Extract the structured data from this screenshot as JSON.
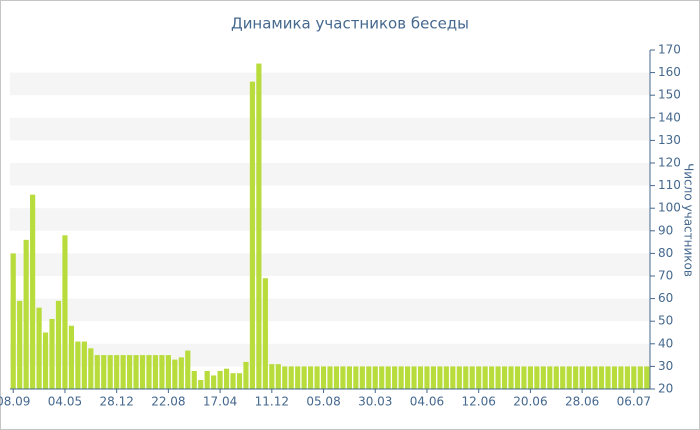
{
  "chart_data": {
    "type": "bar",
    "title": "Динамика участников беседы",
    "y_axis_label": "Число участников",
    "categories": [
      "08.09",
      null,
      null,
      null,
      null,
      null,
      null,
      null,
      "04.05",
      null,
      null,
      null,
      null,
      null,
      null,
      null,
      "28.12",
      null,
      null,
      null,
      null,
      null,
      null,
      null,
      "22.08",
      null,
      null,
      null,
      null,
      null,
      null,
      null,
      "17.04",
      null,
      null,
      null,
      null,
      null,
      null,
      null,
      "11.12",
      null,
      null,
      null,
      null,
      null,
      null,
      null,
      "05.08",
      null,
      null,
      null,
      null,
      null,
      null,
      null,
      "30.03",
      null,
      null,
      null,
      null,
      null,
      null,
      null,
      "04.06",
      null,
      null,
      null,
      null,
      null,
      null,
      null,
      "12.06",
      null,
      null,
      null,
      null,
      null,
      null,
      null,
      "20.06",
      null,
      null,
      null,
      null,
      null,
      null,
      null,
      "28.06",
      null,
      null,
      null,
      null,
      null,
      null,
      null,
      "06.07",
      null,
      null
    ],
    "values": [
      80,
      59,
      86,
      106,
      56,
      45,
      51,
      59,
      88,
      48,
      41,
      41,
      38,
      35,
      35,
      35,
      35,
      35,
      35,
      35,
      35,
      35,
      35,
      35,
      35,
      33,
      34,
      37,
      28,
      24,
      28,
      26,
      28,
      29,
      27,
      27,
      32,
      156,
      164,
      69,
      31,
      31,
      30,
      30,
      30,
      30,
      30,
      30,
      30,
      30,
      30,
      30,
      30,
      30,
      30,
      30,
      30,
      30,
      30,
      30,
      30,
      30,
      30,
      30,
      30,
      30,
      30,
      30,
      30,
      30,
      30,
      30,
      30,
      30,
      30,
      30,
      30,
      30,
      30,
      30,
      30,
      30,
      30,
      30,
      30,
      30,
      30,
      30,
      30,
      30,
      30,
      30,
      30,
      30,
      30,
      30,
      30,
      30,
      30
    ],
    "color": "#b8dc3c",
    "ylim": [
      20,
      170
    ],
    "yticks": [
      20,
      30,
      40,
      50,
      60,
      70,
      80,
      90,
      100,
      110,
      120,
      130,
      140,
      150,
      160,
      170
    ],
    "grid": true,
    "y_axis_side": "right"
  }
}
